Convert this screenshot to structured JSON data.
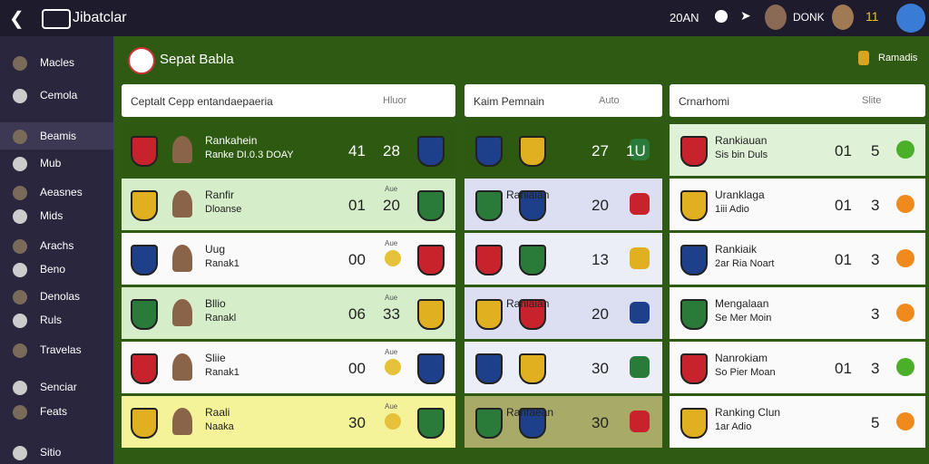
{
  "topbar": {
    "title": "Jibatclar",
    "status": "20AN",
    "user": "DONK",
    "count": "11"
  },
  "sidebar": {
    "items": [
      "Macles",
      "Cemola",
      "Beamis",
      "Mub",
      "Aeasnes",
      "Mids",
      "Arachs",
      "Beno",
      "Denolas",
      "Ruls",
      "Travelas",
      "Senciar",
      "Feats",
      "Sitio"
    ]
  },
  "header": {
    "title": "Sepat Babla",
    "action": "Ramadis"
  },
  "panels": [
    {
      "search": "Ceptalt Cepp entandaepaeria",
      "button": "Hluor",
      "rows": [
        {
          "name": "Rankahein",
          "sub": "Ranke DI.0.3 DOAY",
          "score1": "41",
          "score2": "28"
        },
        {
          "name": "Ranfir",
          "sub": "Dloanse",
          "tag": "Aue",
          "score1": "01",
          "score2": "20"
        },
        {
          "name": "Uug",
          "sub": "Ranak1",
          "tag": "Aue",
          "score1": "00"
        },
        {
          "name": "Bllio",
          "sub": "Ranakl",
          "tag": "Aue",
          "score1": "06",
          "score2": "33"
        },
        {
          "name": "Sliie",
          "sub": "Ranak1",
          "tag": "Aue",
          "score1": "00"
        },
        {
          "name": "Raali",
          "sub": "Naaka",
          "tag": "Aue",
          "score1": "30"
        }
      ]
    },
    {
      "search": "Kaim Pemnain",
      "button": "Auto",
      "rows": [
        {
          "score1": "27",
          "score2": "1U"
        },
        {
          "name": "Ranlaian",
          "score1": "20"
        },
        {
          "score1": "13"
        },
        {
          "name": "Ranlaian",
          "score1": "20"
        },
        {
          "score1": "30"
        },
        {
          "name": "Ranfaean",
          "score1": "30"
        }
      ]
    },
    {
      "search": "Crnarhomi",
      "button": "Slite",
      "rows": [
        {
          "name": "Rankiauan",
          "sub": "Sis bin Duls",
          "score1": "01",
          "score2": "5"
        },
        {
          "name": "Uranklaga",
          "sub": "1iii Adio",
          "score1": "01",
          "score2": "3"
        },
        {
          "name": "Rankiaik",
          "sub": "2ar Ria Noart",
          "score1": "01",
          "score2": "3"
        },
        {
          "name": "Mengalaan",
          "sub": "Se Mer Moin",
          "score2": "3"
        },
        {
          "name": "Nanrokiam",
          "sub": "So Pier Moan",
          "score1": "01",
          "score2": "3"
        },
        {
          "name": "Ranking Clun",
          "sub": "1ar Adio",
          "score2": "5"
        }
      ]
    }
  ]
}
